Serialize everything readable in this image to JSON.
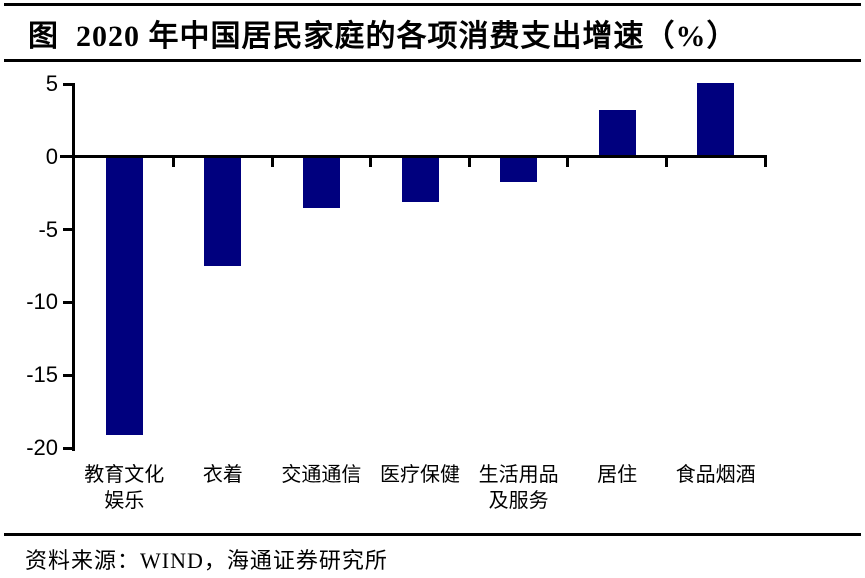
{
  "figure": {
    "title": "图  2020 年中国居民家庭的各项消费支出增速（%）",
    "source": "资料来源：WIND，海通证券研究所"
  },
  "chart_data": {
    "type": "bar",
    "title": "2020 年中国居民家庭的各项消费支出增速（%）",
    "categories": [
      "教育文化娱乐",
      "衣着",
      "交通通信",
      "医疗保健",
      "生活用品及服务",
      "居住",
      "食品烟酒"
    ],
    "category_lines": [
      [
        "教育文化",
        "娱乐"
      ],
      [
        "衣着"
      ],
      [
        "交通通信"
      ],
      [
        "医疗保健"
      ],
      [
        "生活用品",
        "及服务"
      ],
      [
        "居住"
      ],
      [
        "食品烟酒"
      ]
    ],
    "values": [
      -19.1,
      -7.5,
      -3.5,
      -3.1,
      -1.7,
      3.2,
      5.1
    ],
    "unit": "%",
    "xlabel": "",
    "ylabel": "",
    "ylim": [
      -20,
      5
    ],
    "yticks": [
      5,
      0,
      -5,
      -10,
      -15,
      -20
    ],
    "grid": false,
    "legend": "none",
    "bar_color": "#00007e",
    "axis_color": "#000000"
  }
}
